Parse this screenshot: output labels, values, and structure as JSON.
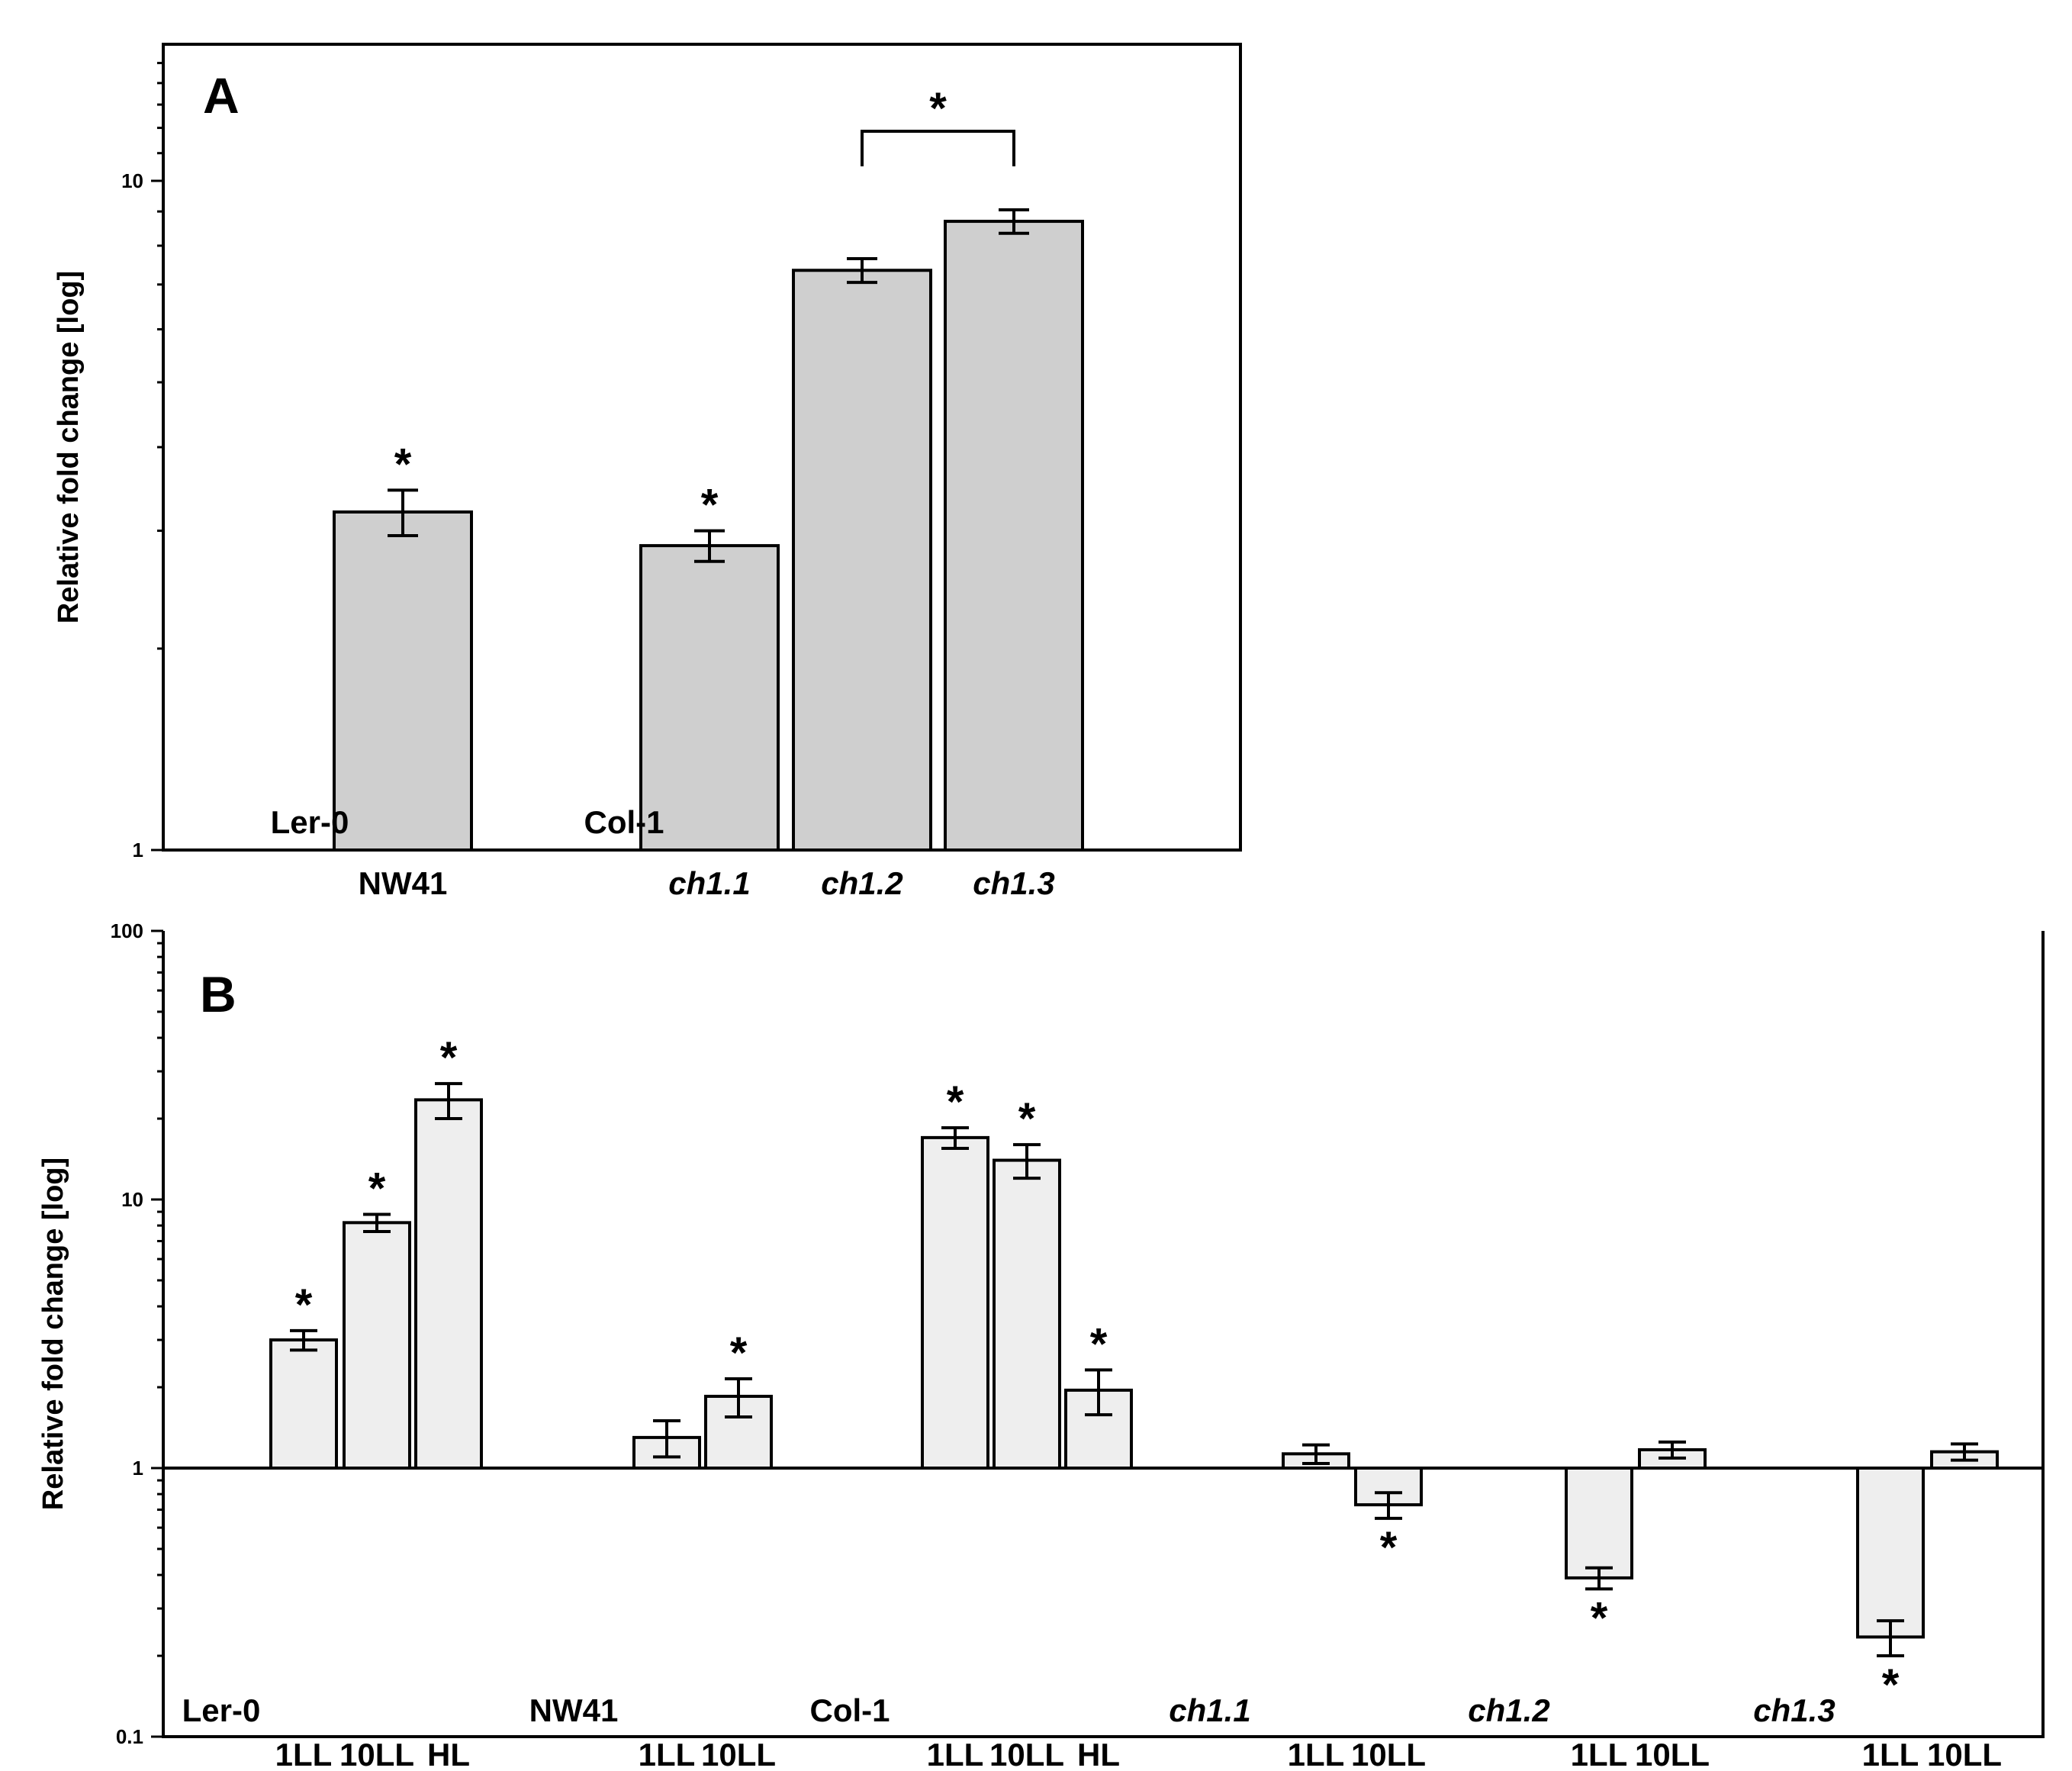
{
  "chart_data": [
    {
      "panel": "A",
      "type": "bar",
      "yscale": "log",
      "ylabel": "Relative fold change [log]",
      "ylim": [
        1,
        16
      ],
      "yticks": [
        {
          "v": 1,
          "label": "1"
        },
        {
          "v": 10,
          "label": "10"
        }
      ],
      "bars": [
        {
          "cat": "NW41",
          "value": 3.2,
          "err": 0.25,
          "sig": "*"
        },
        {
          "cat": "ch1.1",
          "value": 2.85,
          "err": 0.15,
          "sig": "*"
        },
        {
          "cat": "ch1.2",
          "value": 7.35,
          "err": 0.3,
          "sig": ""
        },
        {
          "cat": "ch1.3",
          "value": 8.7,
          "err": 0.35,
          "sig": ""
        }
      ],
      "x_labels": [
        {
          "text": "NW41",
          "italic": false
        },
        {
          "text": "ch1.1",
          "italic": true
        },
        {
          "text": "ch1.2",
          "italic": true
        },
        {
          "text": "ch1.3",
          "italic": true
        }
      ],
      "inner_labels": [
        "Ler-0",
        "Col-1"
      ],
      "comparison": {
        "between": [
          "ch1.2",
          "ch1.3"
        ],
        "sig": "*"
      }
    },
    {
      "panel": "B",
      "type": "bar",
      "yscale": "log",
      "ylabel": "Relative fold change [log]",
      "ylim": [
        0.1,
        100
      ],
      "yticks": [
        {
          "v": 0.1,
          "label": "0.1"
        },
        {
          "v": 1,
          "label": "1"
        },
        {
          "v": 10,
          "label": "10"
        },
        {
          "v": 100,
          "label": "100"
        }
      ],
      "bars": [
        {
          "group": "Ler-0",
          "cond": "1LL",
          "value": 3.0,
          "err": 0.25,
          "sig": "*"
        },
        {
          "group": "Ler-0",
          "cond": "10LL",
          "value": 8.2,
          "err": 0.6,
          "sig": "*"
        },
        {
          "group": "Ler-0",
          "cond": "HL",
          "value": 23.5,
          "err": 3.5,
          "sig": "*"
        },
        {
          "group": "NW41",
          "cond": "1LL",
          "value": 1.3,
          "err": 0.2,
          "sig": ""
        },
        {
          "group": "NW41",
          "cond": "10LL",
          "value": 1.85,
          "err": 0.3,
          "sig": "*"
        },
        {
          "group": "Col-1",
          "cond": "1LL",
          "value": 17.0,
          "err": 1.5,
          "sig": "*"
        },
        {
          "group": "Col-1",
          "cond": "10LL",
          "value": 14.0,
          "err": 2.0,
          "sig": "*"
        },
        {
          "group": "Col-1",
          "cond": "HL",
          "value": 1.95,
          "err": 0.37,
          "sig": "*"
        },
        {
          "group": "ch1.1",
          "cond": "1LL",
          "value": 1.13,
          "err": 0.09,
          "sig": ""
        },
        {
          "group": "ch1.1",
          "cond": "10LL",
          "value": 0.73,
          "err": 0.08,
          "sig": "*"
        },
        {
          "group": "ch1.2",
          "cond": "1LL",
          "value": 0.39,
          "err": 0.035,
          "sig": "*"
        },
        {
          "group": "ch1.2",
          "cond": "10LL",
          "value": 1.17,
          "err": 0.08,
          "sig": ""
        },
        {
          "group": "ch1.3",
          "cond": "1LL",
          "value": 0.235,
          "err": 0.035,
          "sig": "*"
        },
        {
          "group": "ch1.3",
          "cond": "10LL",
          "value": 1.15,
          "err": 0.08,
          "sig": ""
        }
      ],
      "groups": [
        {
          "name": "Ler-0",
          "italic": false
        },
        {
          "name": "NW41",
          "italic": false
        },
        {
          "name": "Col-1",
          "italic": false
        },
        {
          "name": "ch1.1",
          "italic": true
        },
        {
          "name": "ch1.2",
          "italic": true
        },
        {
          "name": "ch1.3",
          "italic": true
        }
      ]
    }
  ]
}
